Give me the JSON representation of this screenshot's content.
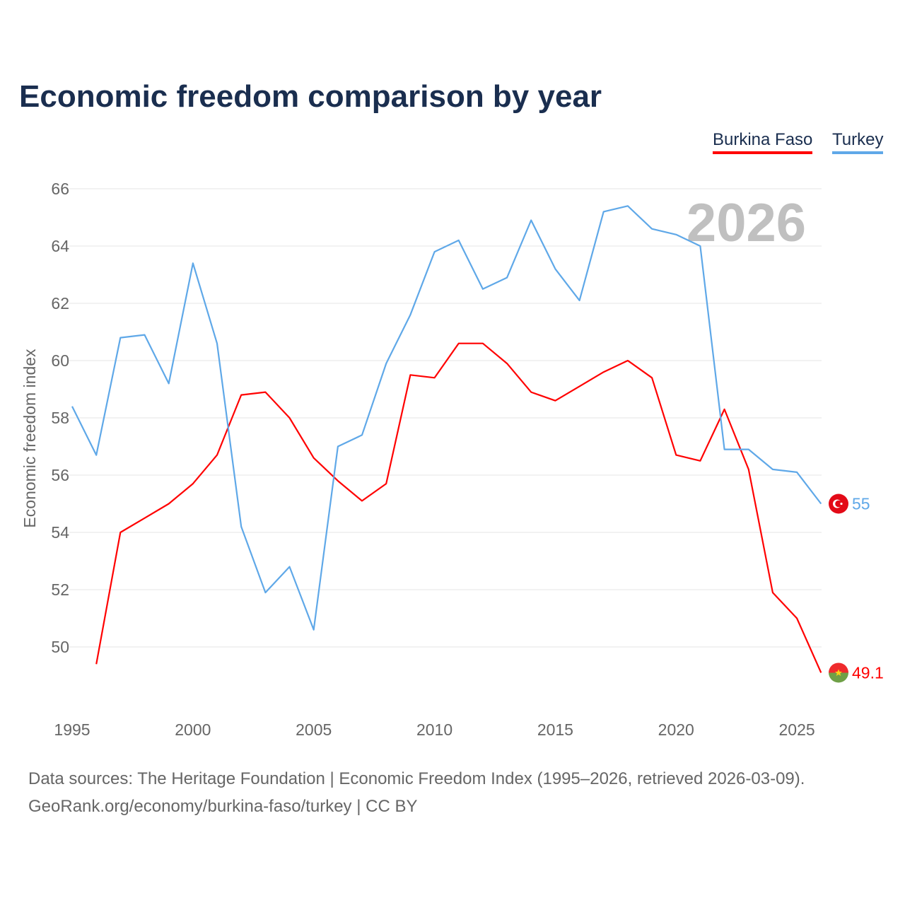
{
  "chart_data": {
    "type": "line",
    "title": "Economic freedom comparison by year",
    "xlabel": "",
    "ylabel": "Economic freedom index",
    "xlim": [
      1995,
      2026
    ],
    "ylim": [
      48,
      66.5
    ],
    "yticks": [
      50,
      52,
      54,
      56,
      58,
      60,
      62,
      64,
      66
    ],
    "xticks": [
      1995,
      2000,
      2005,
      2010,
      2015,
      2020,
      2025
    ],
    "grid": true,
    "legend_position": "top-right",
    "year_watermark": "2026",
    "series": [
      {
        "name": "Burkina Faso",
        "color": "#ff0000",
        "end_label": "49.1",
        "flag": "burkina-faso-flag",
        "x": [
          1996,
          1997,
          1998,
          1999,
          2000,
          2001,
          2002,
          2003,
          2004,
          2005,
          2006,
          2007,
          2008,
          2009,
          2010,
          2011,
          2012,
          2013,
          2014,
          2015,
          2016,
          2017,
          2018,
          2019,
          2020,
          2021,
          2022,
          2023,
          2024,
          2025,
          2026
        ],
        "values": [
          49.4,
          54.0,
          54.5,
          55.0,
          55.7,
          56.7,
          58.8,
          58.9,
          58.0,
          56.6,
          55.8,
          55.1,
          55.7,
          59.5,
          59.4,
          60.6,
          60.6,
          59.9,
          58.9,
          58.6,
          59.1,
          59.6,
          60.0,
          59.4,
          56.7,
          56.5,
          58.3,
          56.2,
          51.9,
          51.0,
          49.1
        ]
      },
      {
        "name": "Turkey",
        "color": "#5fa8e8",
        "end_label": "55",
        "flag": "turkey-flag",
        "x": [
          1995,
          1996,
          1997,
          1998,
          1999,
          2000,
          2001,
          2002,
          2003,
          2004,
          2005,
          2006,
          2007,
          2008,
          2009,
          2010,
          2011,
          2012,
          2013,
          2014,
          2015,
          2016,
          2017,
          2018,
          2019,
          2020,
          2021,
          2022,
          2023,
          2024,
          2025,
          2026
        ],
        "values": [
          58.4,
          56.7,
          60.8,
          60.9,
          59.2,
          63.4,
          60.6,
          54.2,
          51.9,
          52.8,
          50.6,
          57.0,
          57.4,
          59.9,
          61.6,
          63.8,
          64.2,
          62.5,
          62.9,
          64.9,
          63.2,
          62.1,
          65.2,
          65.4,
          64.6,
          64.4,
          64.0,
          56.9,
          56.9,
          56.2,
          56.1,
          55.0
        ]
      }
    ]
  },
  "footer": {
    "sources": "Data sources: The Heritage Foundation | Economic Freedom Index (1995–2026, retrieved 2026-03-09).",
    "credit": "GeoRank.org/economy/burkina-faso/turkey | CC BY"
  }
}
